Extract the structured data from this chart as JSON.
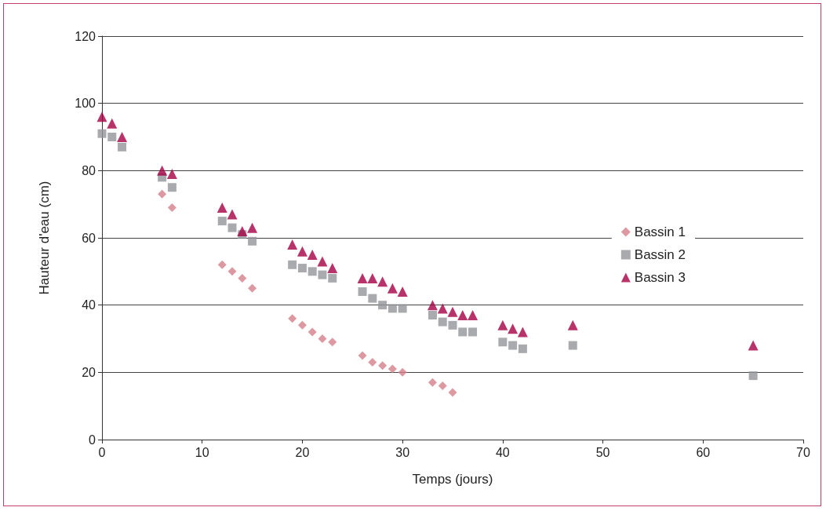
{
  "chart_data": {
    "type": "scatter",
    "xlabel": "Temps (jours)",
    "ylabel": "Hauteur d'eau (cm)",
    "xlim": [
      0,
      70
    ],
    "xticks": [
      0,
      10,
      20,
      30,
      40,
      50,
      60,
      70
    ],
    "ylim": [
      0,
      120
    ],
    "yticks": [
      0,
      20,
      40,
      60,
      80,
      100,
      120
    ],
    "grid": "y",
    "legend": "right",
    "series": [
      {
        "name": "Bassin 1",
        "color": "#d4808a",
        "marker": "diamond",
        "x": [
          6,
          7,
          12,
          13,
          14,
          15,
          19,
          20,
          21,
          22,
          23,
          26,
          27,
          28,
          29,
          30,
          33,
          34,
          35
        ],
        "values": [
          73,
          69,
          52,
          50,
          48,
          45,
          36,
          34,
          32,
          30,
          29,
          25,
          23,
          22,
          21,
          20,
          17,
          16,
          14
        ]
      },
      {
        "name": "Bassin 2",
        "color": "#939598",
        "marker": "square",
        "x": [
          0,
          1,
          2,
          6,
          7,
          12,
          13,
          14,
          15,
          19,
          20,
          21,
          22,
          23,
          26,
          27,
          28,
          29,
          30,
          33,
          34,
          35,
          36,
          37,
          40,
          41,
          42,
          47,
          65
        ],
        "values": [
          91,
          90,
          87,
          78,
          75,
          65,
          63,
          61,
          59,
          52,
          51,
          50,
          49,
          48,
          44,
          42,
          40,
          39,
          39,
          37,
          35,
          34,
          32,
          32,
          29,
          28,
          27,
          28,
          19
        ]
      },
      {
        "name": "Bassin 3",
        "color": "#a50044",
        "marker": "triangle",
        "x": [
          0,
          1,
          2,
          6,
          7,
          12,
          13,
          14,
          15,
          19,
          20,
          21,
          22,
          23,
          26,
          27,
          28,
          29,
          30,
          33,
          34,
          35,
          36,
          37,
          40,
          41,
          42,
          47,
          65
        ],
        "values": [
          96,
          94,
          90,
          80,
          79,
          69,
          67,
          62,
          63,
          58,
          56,
          55,
          53,
          51,
          48,
          48,
          47,
          45,
          44,
          40,
          39,
          38,
          37,
          37,
          34,
          33,
          32,
          34,
          28
        ]
      }
    ]
  }
}
